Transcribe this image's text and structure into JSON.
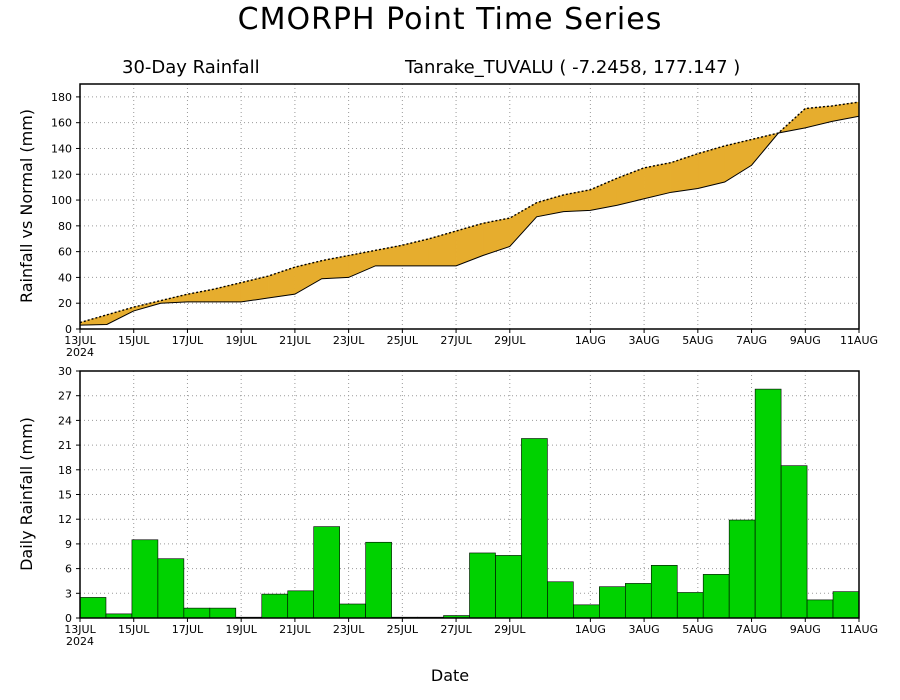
{
  "page": {
    "title": "CMORPH Point Time Series",
    "subtitle_left": "30-Day Rainfall",
    "subtitle_right": "Tanrake_TUVALU ( -7.2458, 177.147 )",
    "xlabel": "Date"
  },
  "chart_data": [
    {
      "type": "area",
      "ylabel": "Rainfall vs Normal (mm)",
      "ylim": [
        0,
        190
      ],
      "yticks": [
        0,
        20,
        40,
        60,
        80,
        100,
        120,
        140,
        160,
        180
      ],
      "xticks": [
        {
          "day": 0,
          "label": "13JUL",
          "label2": "2024"
        },
        {
          "day": 2,
          "label": "15JUL"
        },
        {
          "day": 4,
          "label": "17JUL"
        },
        {
          "day": 6,
          "label": "19JUL"
        },
        {
          "day": 8,
          "label": "21JUL"
        },
        {
          "day": 10,
          "label": "23JUL"
        },
        {
          "day": 12,
          "label": "25JUL"
        },
        {
          "day": 14,
          "label": "27JUL"
        },
        {
          "day": 16,
          "label": "29JUL"
        },
        {
          "day": 19,
          "label": "1AUG"
        },
        {
          "day": 21,
          "label": "3AUG"
        },
        {
          "day": 23,
          "label": "5AUG"
        },
        {
          "day": 25,
          "label": "7AUG"
        },
        {
          "day": 27,
          "label": "9AUG"
        },
        {
          "day": 29,
          "label": "11AUG"
        }
      ],
      "grid": true,
      "colors": {
        "below_normal": "#e6ad2e",
        "above_normal": "#1f3cff"
      },
      "series": [
        {
          "x": [
            0,
            1,
            2,
            3,
            4,
            5,
            6,
            7,
            8,
            9,
            10,
            11,
            12,
            13,
            14,
            15,
            16,
            17,
            18,
            19,
            20,
            21,
            22,
            23,
            24,
            25,
            26,
            27,
            28,
            29
          ],
          "values": [
            3,
            3.5,
            14,
            20,
            21,
            21,
            21,
            24,
            27,
            39,
            40,
            49,
            49,
            49,
            49,
            57,
            64,
            87,
            91,
            92,
            96,
            101,
            106,
            109,
            114,
            127,
            152,
            156,
            161,
            165
          ]
        },
        {
          "x": [
            0,
            1,
            2,
            3,
            4,
            5,
            6,
            7,
            8,
            9,
            10,
            11,
            12,
            13,
            14,
            15,
            16,
            17,
            18,
            19,
            20,
            21,
            22,
            23,
            24,
            25,
            26,
            27,
            28,
            29
          ],
          "values": [
            5,
            11,
            17,
            22,
            27,
            31,
            36,
            41,
            48,
            53,
            57,
            61,
            65,
            70,
            76,
            82,
            86,
            98,
            104,
            108,
            117,
            125,
            129,
            136,
            142,
            147,
            152,
            171,
            173,
            176
          ]
        }
      ]
    },
    {
      "type": "bar",
      "ylabel": "Daily Rainfall (mm)",
      "ylim": [
        0,
        30
      ],
      "yticks": [
        0,
        3,
        6,
        9,
        12,
        15,
        18,
        21,
        24,
        27,
        30
      ],
      "grid": true,
      "color": "#00d200",
      "values": [
        2.5,
        0.5,
        9.5,
        7.2,
        1.2,
        1.2,
        0.1,
        2.9,
        3.3,
        11.1,
        1.7,
        9.2,
        0.1,
        0.1,
        0.3,
        7.9,
        7.6,
        21.8,
        4.4,
        1.6,
        3.8,
        4.2,
        6.4,
        3.1,
        5.3,
        11.9,
        27.8,
        18.5,
        2.2,
        3.2
      ]
    }
  ]
}
